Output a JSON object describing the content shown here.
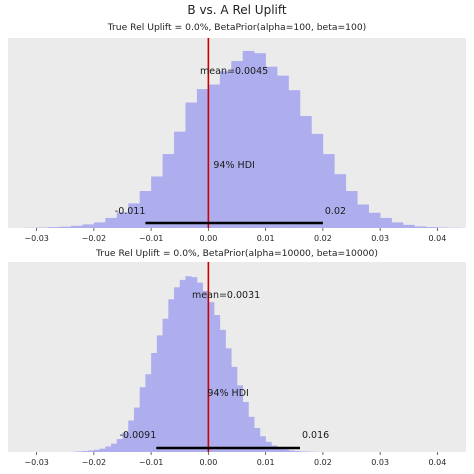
{
  "chart_data": [
    {
      "type": "histogram",
      "figure_title": "B vs. A Rel Uplift",
      "title": "True Rel Uplift = 0.0%, BetaPrior(alpha=100, beta=100)",
      "xlim": [
        -0.035,
        0.045
      ],
      "xticks": [
        -0.03,
        -0.02,
        -0.01,
        0.0,
        0.01,
        0.02,
        0.03,
        0.04
      ],
      "xtick_labels": [
        "−0.03",
        "−0.02",
        "−0.01",
        "0.00",
        "0.01",
        "0.02",
        "0.03",
        "0.04"
      ],
      "bin_start": -0.032,
      "bin_width": 0.002,
      "counts": [
        1,
        2,
        4,
        6,
        10,
        16,
        25,
        45,
        70,
        110,
        165,
        230,
        330,
        430,
        560,
        620,
        640,
        700,
        745,
        790,
        780,
        720,
        680,
        615,
        500,
        420,
        330,
        240,
        165,
        105,
        68,
        45,
        25,
        14,
        7,
        4,
        2,
        1
      ],
      "ylim_max": 830,
      "mean_label": "mean=0.0045",
      "mean": 0.0045,
      "hdi_label": "94% HDI",
      "hdi": [
        -0.011,
        0.02
      ],
      "hdi_low_label": "-0.011",
      "hdi_high_label": "0.02",
      "reference_line": 0.0,
      "colors": {
        "bars": "#aeaeee",
        "reference": "#cc0000",
        "hdi": "#000000",
        "background": "#ebebeb"
      }
    },
    {
      "type": "histogram",
      "title": "True Rel Uplift = 0.0%, BetaPrior(alpha=10000, beta=10000)",
      "xlim": [
        -0.035,
        0.045
      ],
      "xticks": [
        -0.03,
        -0.02,
        -0.01,
        0.0,
        0.01,
        0.02,
        0.03,
        0.04
      ],
      "xtick_labels": [
        "−0.03",
        "−0.02",
        "−0.01",
        "0.00",
        "0.01",
        "0.02",
        "0.03",
        "0.04"
      ],
      "bin_start": -0.024,
      "bin_width": 0.001,
      "counts": [
        1,
        3,
        5,
        8,
        12,
        18,
        30,
        45,
        70,
        105,
        170,
        240,
        350,
        420,
        535,
        630,
        720,
        825,
        890,
        930,
        950,
        945,
        915,
        870,
        810,
        740,
        660,
        560,
        460,
        360,
        270,
        190,
        130,
        85,
        55,
        35,
        22,
        14,
        8,
        5,
        3,
        2,
        1
      ],
      "ylim_max": 1005,
      "mean_label": "mean=0.0031",
      "mean": 0.0031,
      "hdi_label": "94% HDI",
      "hdi": [
        -0.0091,
        0.016
      ],
      "hdi_low_label": "-0.0091",
      "hdi_high_label": "0.016",
      "reference_line": 0.0,
      "colors": {
        "bars": "#aeaeee",
        "reference": "#cc0000",
        "hdi": "#000000",
        "background": "#ebebeb"
      }
    }
  ]
}
